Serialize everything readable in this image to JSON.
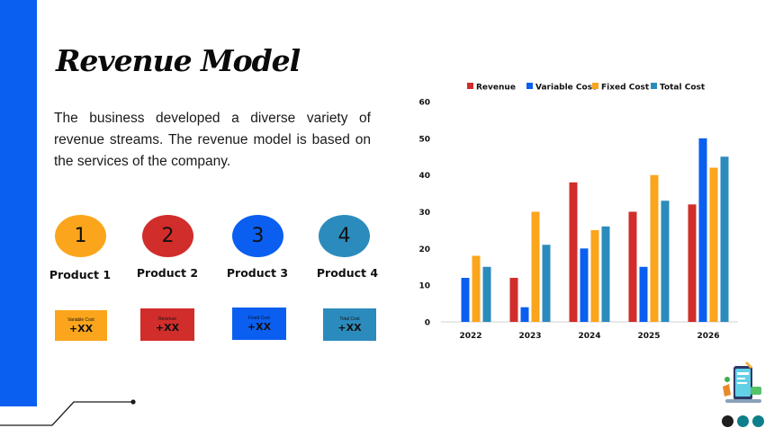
{
  "slide": {
    "title": "Revenue Model",
    "description": "The business developed a diverse variety of revenue streams. The revenue model is based on the services of the company."
  },
  "products": [
    {
      "number": "1",
      "label": "Product 1",
      "color": "#fba51c"
    },
    {
      "number": "2",
      "label": "Product 2",
      "color": "#d12d2b"
    },
    {
      "number": "3",
      "label": "Product 3",
      "color": "#0b5ff0"
    },
    {
      "number": "4",
      "label": "Product 4",
      "color": "#2c8bbd"
    }
  ],
  "cost_boxes": [
    {
      "label": "Variable Cost",
      "value": "+XX",
      "color": "#fba51c"
    },
    {
      "label": "Revenue",
      "value": "+XX",
      "color": "#d12d2b"
    },
    {
      "label": "Fixed Cost",
      "value": "+XX",
      "color": "#0b5ff0"
    },
    {
      "label": "Total Cost",
      "value": "+XX",
      "color": "#2c8bbd"
    }
  ],
  "nav_dots": {
    "colors": [
      "#1e1e1e",
      "#0d7f8a",
      "#0d7f8a"
    ]
  },
  "chart_data": {
    "type": "bar",
    "categories": [
      "2022",
      "2023",
      "2024",
      "2025",
      "2026"
    ],
    "series": [
      {
        "name": "Revenue",
        "color": "#d12d2b",
        "values": [
          0,
          12,
          38,
          30,
          32
        ]
      },
      {
        "name": "Variable Cost",
        "color": "#0b5ff0",
        "values": [
          12,
          4,
          20,
          15,
          50
        ]
      },
      {
        "name": "Fixed Cost",
        "color": "#fba51c",
        "values": [
          18,
          30,
          25,
          40,
          42
        ]
      },
      {
        "name": "Total Cost",
        "color": "#2c8bbd",
        "values": [
          15,
          21,
          26,
          33,
          45
        ]
      }
    ],
    "yticks": [
      "0",
      "10",
      "20",
      "30",
      "40",
      "50",
      "60"
    ],
    "ylim": [
      0,
      60
    ],
    "grid": false,
    "legend_position": "top"
  }
}
